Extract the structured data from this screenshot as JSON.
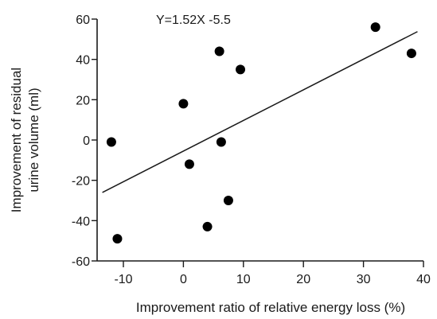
{
  "chart_data": {
    "type": "scatter",
    "title": "",
    "xlabel": "Improvement ratio of relative energy loss (%)",
    "ylabel_lines": [
      "Improvement of residual",
      "urine volume (ml)"
    ],
    "xlim": [
      -15,
      40
    ],
    "ylim": [
      -60,
      60
    ],
    "xticks": [
      -10,
      0,
      10,
      20,
      30,
      40
    ],
    "yticks": [
      60,
      40,
      20,
      0,
      -20,
      -40,
      -60
    ],
    "points": [
      {
        "x": -12,
        "y": -1
      },
      {
        "x": -11,
        "y": -49
      },
      {
        "x": 0,
        "y": 18
      },
      {
        "x": 1,
        "y": -12
      },
      {
        "x": 4,
        "y": -43
      },
      {
        "x": 6,
        "y": 44
      },
      {
        "x": 6.3,
        "y": -1
      },
      {
        "x": 7.5,
        "y": -30
      },
      {
        "x": 9.5,
        "y": 35
      },
      {
        "x": 32,
        "y": 56
      },
      {
        "x": 38,
        "y": 43
      }
    ],
    "fit_line": {
      "slope": 1.52,
      "intercept": -5.5,
      "x_range": [
        -13.5,
        39
      ]
    },
    "annotation": "Y=1.52X -5.5",
    "grid": false,
    "legend": "none"
  }
}
